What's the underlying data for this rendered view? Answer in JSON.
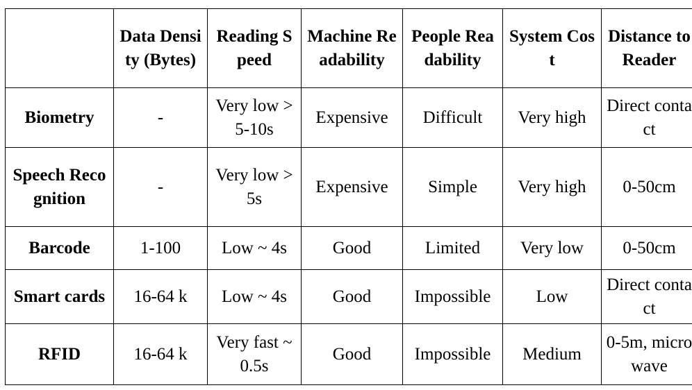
{
  "table": {
    "headers": [
      "",
      "Data Density (Bytes)",
      "Reading Speed",
      "Machine Readability",
      "People Readability",
      "System Cost",
      "Distance to Reader"
    ],
    "rows": [
      {
        "label": "Biometry",
        "cells": [
          "-",
          "Very low > 5-10s",
          "Expensive",
          "Difficult",
          "Very high",
          "Direct contact"
        ]
      },
      {
        "label": "Speech Recognition",
        "cells": [
          "-",
          "Very low > 5s",
          "Expensive",
          "Simple",
          "Very high",
          "0-50cm"
        ]
      },
      {
        "label": "Barcode",
        "cells": [
          "1-100",
          "Low ~ 4s",
          "Good",
          "Limited",
          "Very low",
          "0-50cm"
        ]
      },
      {
        "label": "Smart cards",
        "cells": [
          "16-64 k",
          "Low ~ 4s",
          "Good",
          "Impossible",
          "Low",
          "Direct contact"
        ]
      },
      {
        "label": "RFID",
        "cells": [
          "16-64 k",
          "Very fast ~ 0.5s",
          "Good",
          "Impossible",
          "Medium",
          "0-5m, microwave"
        ]
      }
    ]
  }
}
